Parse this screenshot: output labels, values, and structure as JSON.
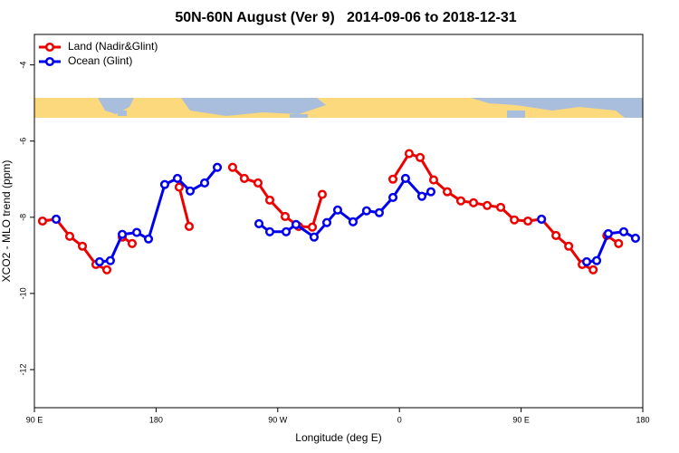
{
  "chart_data": {
    "type": "line",
    "title": "50N-60N August (Ver 9)   2014-09-06 to 2018-12-31",
    "x_label": "Longitude (deg E)",
    "y_label": "XCO2 - MLO trend (ppm)",
    "xlim": [
      90,
      540
    ],
    "xticks": [
      {
        "value": 90,
        "label": "90 E"
      },
      {
        "value": 180,
        "label": "180"
      },
      {
        "value": 270,
        "label": "90 W"
      },
      {
        "value": 360,
        "label": "0"
      },
      {
        "value": 450,
        "label": "90 E"
      },
      {
        "value": 540,
        "label": "180"
      }
    ],
    "ylim": [
      -13,
      -3.2
    ],
    "yticks": [
      -12,
      -10,
      -8,
      -6,
      -4
    ],
    "legend": "top-left",
    "series": [
      {
        "name": "Land (Nadir&Glint)",
        "color": "#ee0000",
        "x": [
          96.0,
          106.1,
          116.1,
          125.5,
          135.5,
          143.6,
          null,
          155,
          162.3,
          null,
          197.1,
          204.5,
          null,
          236.6,
          245.3,
          255.4,
          264.1,
          275.5,
          285.5,
          295.6,
          302.9,
          null,
          355.2,
          367.2,
          375.3,
          385.3,
          395.4,
          405.4,
          414.8,
          424.9,
          434.9,
          445,
          455,
          465.1,
          475.8,
          485.2,
          495.2,
          503.3,
          null,
          513.4,
          522.1
        ],
        "values": [
          -8.1,
          -8.05,
          -8.5,
          -8.76,
          -9.24,
          -9.38,
          null,
          -8.52,
          -8.69,
          null,
          -7.21,
          -8.24,
          null,
          -6.69,
          -6.98,
          -7.1,
          -7.55,
          -7.98,
          -8.24,
          -8.26,
          -7.4,
          null,
          -7.0,
          -6.33,
          -6.43,
          -7.02,
          -7.33,
          -7.57,
          -7.62,
          -7.69,
          -7.74,
          -8.07,
          -8.1,
          -8.05,
          -8.48,
          -8.76,
          -9.24,
          -9.38,
          null,
          -8.48,
          -8.69
        ]
      },
      {
        "name": "Ocean (Glint)",
        "color": "#0000ee",
        "x": [
          106.1,
          null,
          138.2,
          146.2,
          155,
          165.7,
          174.4,
          186.4,
          195.8,
          205.2,
          215.9,
          225.3,
          null,
          256.1,
          264.1,
          276.2,
          283.5,
          296.9,
          306.3,
          314.3,
          325.7,
          335.7,
          345.1,
          355.2,
          364.5,
          376.6,
          383.3,
          null,
          465.1,
          null,
          498.5,
          505.9,
          514.5,
          525.9,
          534.6
        ],
        "values": [
          -8.05,
          null,
          -9.17,
          -9.14,
          -8.45,
          -8.4,
          -8.57,
          -7.14,
          -6.98,
          -7.31,
          -7.1,
          -6.69,
          null,
          -8.17,
          -8.38,
          -8.38,
          -8.19,
          -8.52,
          -8.14,
          -7.81,
          -8.12,
          -7.83,
          -7.88,
          -7.48,
          -6.98,
          -7.45,
          -7.33,
          null,
          -8.05,
          null,
          -9.17,
          -9.14,
          -8.43,
          -8.38,
          -8.55
        ]
      }
    ]
  }
}
